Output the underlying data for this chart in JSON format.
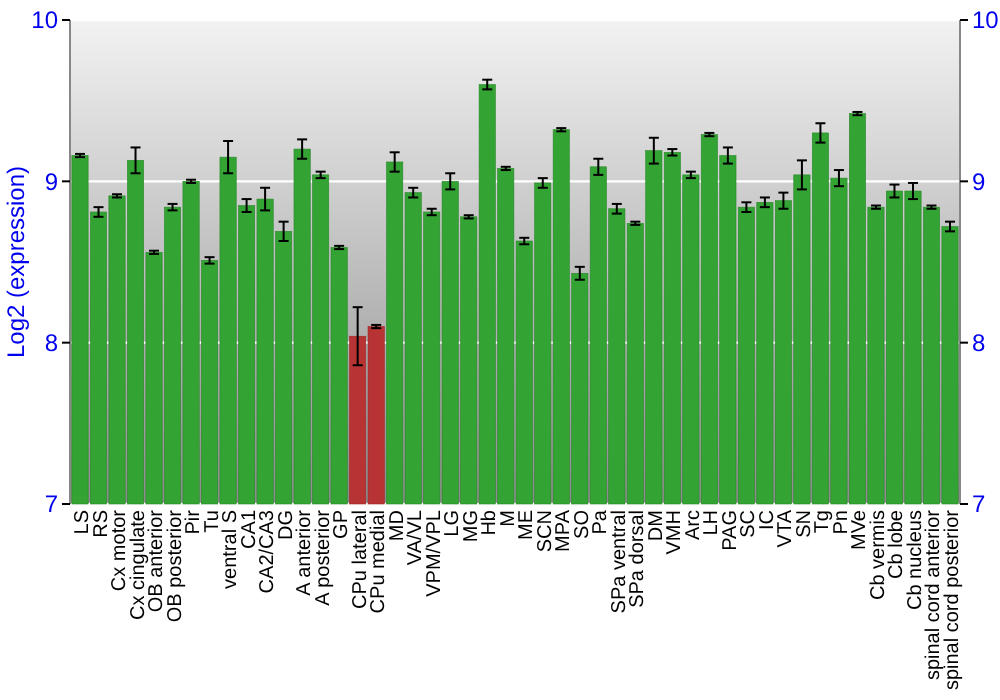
{
  "chart_data": {
    "type": "bar",
    "ylabel": "Log2 (expression)",
    "categories": [
      "LS",
      "RS",
      "Cx motor",
      "Cx cingulate",
      "OB anterior",
      "OB posterior",
      "Pir",
      "Tu",
      "ventral S",
      "CA1",
      "CA2/CA3",
      "DG",
      "A anterior",
      "A posterior",
      "GP",
      "CPu lateral",
      "CPu medial",
      "MD",
      "VA/VL",
      "VPM/VPL",
      "LG",
      "MG",
      "Hb",
      "M",
      "ME",
      "SCN",
      "MPA",
      "SO",
      "Pa",
      "SPa ventral",
      "SPa dorsal",
      "DM",
      "VMH",
      "Arc",
      "LH",
      "PAG",
      "SC",
      "IC",
      "VTA",
      "SN",
      "Tg",
      "Pn",
      "MVe",
      "Cb vermis",
      "Cb lobe",
      "Cb nucleus",
      "spinal cord anterior",
      "spinal cord posterior"
    ],
    "values": [
      9.16,
      8.81,
      8.91,
      9.13,
      8.56,
      8.84,
      9.0,
      8.51,
      9.15,
      8.85,
      8.89,
      8.69,
      9.2,
      9.04,
      8.59,
      8.04,
      8.1,
      9.12,
      8.93,
      8.81,
      9.0,
      8.78,
      9.6,
      9.08,
      8.63,
      8.99,
      9.32,
      8.43,
      9.09,
      8.83,
      8.74,
      9.19,
      9.18,
      9.04,
      9.29,
      9.16,
      8.84,
      8.87,
      8.88,
      9.04,
      9.3,
      9.02,
      9.42,
      8.84,
      8.94,
      8.94,
      8.84,
      8.72
    ],
    "errors": [
      0.01,
      0.03,
      0.01,
      0.08,
      0.01,
      0.02,
      0.01,
      0.02,
      0.1,
      0.04,
      0.07,
      0.06,
      0.06,
      0.02,
      0.01,
      0.18,
      0.01,
      0.06,
      0.03,
      0.02,
      0.05,
      0.01,
      0.03,
      0.01,
      0.02,
      0.03,
      0.01,
      0.04,
      0.05,
      0.03,
      0.01,
      0.08,
      0.02,
      0.02,
      0.01,
      0.05,
      0.03,
      0.03,
      0.05,
      0.09,
      0.06,
      0.05,
      0.01,
      0.01,
      0.04,
      0.05,
      0.01,
      0.03
    ],
    "colors": [
      "#33a333",
      "#33a333",
      "#33a333",
      "#33a333",
      "#33a333",
      "#33a333",
      "#33a333",
      "#33a333",
      "#33a333",
      "#33a333",
      "#33a333",
      "#33a333",
      "#33a333",
      "#33a333",
      "#33a333",
      "#b83333",
      "#b83333",
      "#33a333",
      "#33a333",
      "#33a333",
      "#33a333",
      "#33a333",
      "#33a333",
      "#33a333",
      "#33a333",
      "#33a333",
      "#33a333",
      "#33a333",
      "#33a333",
      "#33a333",
      "#33a333",
      "#33a333",
      "#33a333",
      "#33a333",
      "#33a333",
      "#33a333",
      "#33a333",
      "#33a333",
      "#33a333",
      "#33a333",
      "#33a333",
      "#33a333",
      "#33a333",
      "#33a333",
      "#33a333",
      "#33a333",
      "#33a333",
      "#33a333"
    ],
    "ylim": [
      7,
      10
    ],
    "yticks": [
      7,
      8,
      9,
      10
    ],
    "y2lim": [
      7,
      10
    ],
    "y2ticks": [
      7,
      8,
      9,
      10
    ],
    "grid": "y"
  }
}
